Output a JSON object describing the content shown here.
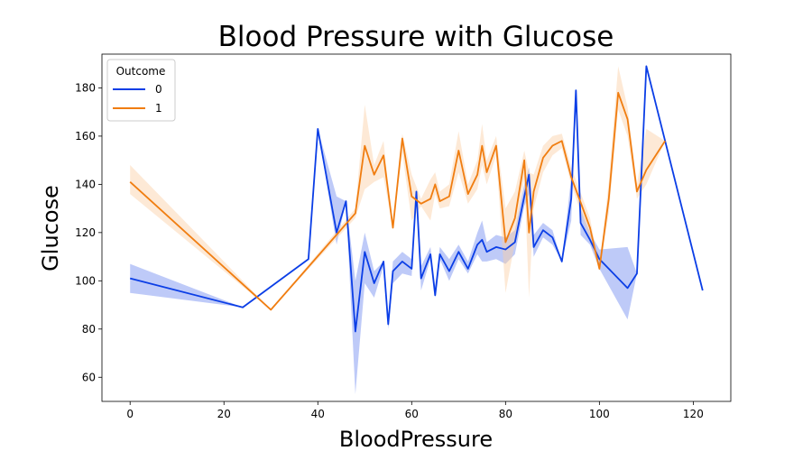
{
  "chart_data": {
    "type": "line",
    "title": "Blood Pressure with Glucose",
    "xlabel": "BloodPressure",
    "ylabel": "Glucose",
    "xlim": [
      -6,
      128
    ],
    "ylim": [
      50,
      194
    ],
    "xticks": [
      0,
      20,
      40,
      60,
      80,
      100,
      120
    ],
    "yticks": [
      60,
      80,
      100,
      120,
      140,
      160,
      180
    ],
    "grid": false,
    "legend": {
      "title": "Outcome",
      "placement": "top-left"
    },
    "series": [
      {
        "name": "0",
        "color": "#0b3ee6",
        "band_color": "#6f89ef",
        "x": [
          0,
          24,
          38,
          40,
          44,
          46,
          48,
          50,
          52,
          54,
          55,
          56,
          58,
          60,
          61,
          62,
          64,
          65,
          66,
          68,
          70,
          72,
          74,
          75,
          76,
          78,
          80,
          82,
          84,
          85,
          86,
          88,
          90,
          92,
          94,
          95,
          96,
          98,
          100,
          106,
          108,
          110,
          122
        ],
        "y": [
          101,
          89,
          109,
          163,
          120,
          133,
          79,
          112,
          99,
          108,
          82,
          104,
          108,
          105,
          137,
          101,
          111,
          94,
          111,
          104,
          112,
          105,
          115,
          117,
          112,
          114,
          113,
          116,
          135,
          144,
          114,
          121,
          118,
          108,
          134,
          179,
          124,
          117,
          109,
          97,
          103,
          189,
          96
        ],
        "lower": [
          95,
          89,
          109,
          163,
          115,
          133,
          53,
          99,
          93,
          106,
          80,
          99,
          103,
          102,
          137,
          96,
          109,
          93,
          109,
          100,
          109,
          103,
          111,
          108,
          108,
          109,
          107,
          111,
          131,
          136,
          110,
          118,
          115,
          108,
          125,
          179,
          119,
          115,
          105,
          84,
          103,
          189,
          96
        ],
        "upper": [
          107,
          89,
          109,
          163,
          135,
          133,
          100,
          120,
          104,
          108,
          84,
          108,
          112,
          109,
          137,
          106,
          114,
          98,
          114,
          109,
          115,
          108,
          120,
          125,
          116,
          119,
          118,
          121,
          140,
          147,
          119,
          124,
          121,
          108,
          143,
          179,
          130,
          120,
          113,
          114,
          103,
          189,
          96
        ]
      },
      {
        "name": "1",
        "color": "#f07d10",
        "band_color": "#fbcfa5",
        "x": [
          0,
          30,
          48,
          50,
          52,
          54,
          56,
          58,
          60,
          62,
          64,
          65,
          66,
          68,
          70,
          72,
          74,
          75,
          76,
          78,
          80,
          82,
          84,
          85,
          86,
          88,
          90,
          92,
          94,
          98,
          100,
          102,
          104,
          106,
          108,
          110,
          114
        ],
        "y": [
          141,
          88,
          128,
          156,
          144,
          152,
          122,
          159,
          135,
          132,
          134,
          140,
          133,
          135,
          154,
          136,
          144,
          156,
          145,
          156,
          116,
          126,
          150,
          120,
          137,
          151,
          156,
          158,
          143,
          122,
          105,
          134,
          178,
          167,
          137,
          146,
          158
        ],
        "lower": [
          136,
          88,
          126,
          138,
          141,
          143,
          122,
          153,
          125,
          131,
          125,
          136,
          130,
          131,
          145,
          132,
          138,
          148,
          140,
          152,
          95,
          116,
          143,
          93,
          130,
          145,
          152,
          155,
          140,
          117,
          104,
          128,
          171,
          160,
          134,
          140,
          158
        ],
        "upper": [
          148,
          88,
          130,
          173,
          148,
          158,
          122,
          161,
          144,
          134,
          142,
          145,
          137,
          140,
          162,
          140,
          150,
          165,
          150,
          160,
          130,
          137,
          154,
          145,
          144,
          156,
          160,
          161,
          147,
          126,
          106,
          141,
          189,
          172,
          140,
          163,
          158
        ]
      }
    ]
  }
}
